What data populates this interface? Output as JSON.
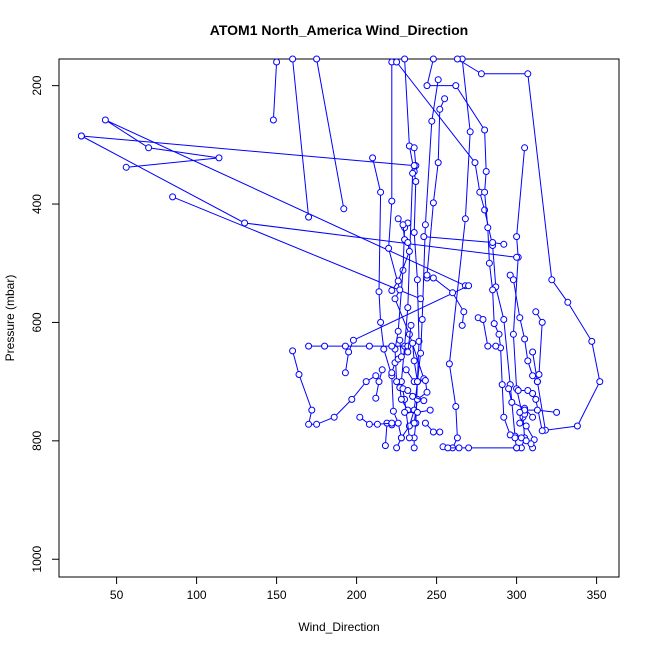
{
  "chart_data": {
    "type": "line",
    "title": "ATOM1 North_America Wind_Direction",
    "xlabel": "Wind_Direction",
    "ylabel": "Pressure (mbar)",
    "xlim": [
      14,
      364
    ],
    "ylim": [
      1030,
      155
    ],
    "y_reversed": true,
    "grid": false,
    "legend": "none",
    "x_ticks": [
      50,
      100,
      150,
      200,
      250,
      300,
      350
    ],
    "y_ticks": [
      200,
      400,
      600,
      800,
      1000
    ],
    "series_color": "#0000ff",
    "marker": "open-circle",
    "series": [
      {
        "points": [
          [
            266,
            155
          ],
          [
            271,
            278
          ],
          [
            268,
            425
          ],
          [
            258,
            670
          ],
          [
            262,
            742
          ],
          [
            263,
            795
          ],
          [
            260,
            812
          ]
        ]
      },
      {
        "points": [
          [
            230,
            155
          ],
          [
            233,
            302
          ],
          [
            236,
            345
          ],
          [
            237,
            362
          ],
          [
            236,
            448
          ],
          [
            238,
            528
          ],
          [
            239,
            632
          ],
          [
            238,
            700
          ],
          [
            236,
            748
          ],
          [
            233,
            775
          ],
          [
            228,
            795
          ],
          [
            225,
            812
          ]
        ]
      },
      {
        "points": [
          [
            251,
            190
          ],
          [
            247,
            260
          ],
          [
            243,
            435
          ],
          [
            241,
            595
          ],
          [
            240,
            652
          ],
          [
            238,
            700
          ],
          [
            237,
            770
          ],
          [
            236,
            795
          ],
          [
            236,
            812
          ]
        ]
      },
      {
        "points": [
          [
            305,
            305
          ],
          [
            300,
            455
          ],
          [
            301,
            490
          ],
          [
            298,
            620
          ],
          [
            300,
            712
          ],
          [
            304,
            760
          ],
          [
            305,
            795
          ],
          [
            303,
            812
          ]
        ]
      },
      {
        "points": [
          [
            236,
            305
          ],
          [
            237,
            335
          ],
          [
            235,
            348
          ],
          [
            232,
            575
          ],
          [
            230,
            640
          ],
          [
            228,
            700
          ],
          [
            230,
            730
          ],
          [
            233,
            795
          ]
        ]
      },
      {
        "points": [
          [
            210,
            322
          ],
          [
            215,
            380
          ],
          [
            214,
            548
          ],
          [
            215,
            600
          ],
          [
            217,
            645
          ],
          [
            222,
            690
          ],
          [
            223,
            750
          ],
          [
            226,
            770
          ],
          [
            228,
            795
          ]
        ]
      },
      {
        "points": [
          [
            232,
            432
          ],
          [
            230,
            440
          ],
          [
            229,
            512
          ],
          [
            226,
            615
          ],
          [
            224,
            645
          ],
          [
            225,
            700
          ],
          [
            227,
            710
          ],
          [
            228,
            730
          ],
          [
            232,
            748
          ]
        ]
      },
      {
        "points": [
          [
            28,
            285
          ],
          [
            236,
            335
          ]
        ]
      },
      {
        "points": [
          [
            28,
            285
          ],
          [
            130,
            432
          ],
          [
            300,
            490
          ]
        ]
      },
      {
        "points": [
          [
            56,
            338
          ],
          [
            114,
            322
          ],
          [
            70,
            305
          ],
          [
            43,
            258
          ],
          [
            268,
            538
          ]
        ]
      },
      {
        "points": [
          [
            85,
            388
          ],
          [
            240,
            560
          ]
        ]
      },
      {
        "points": [
          [
            148,
            258
          ],
          [
            150,
            160
          ]
        ]
      },
      {
        "points": [
          [
            170,
            422
          ],
          [
            160,
            155
          ]
        ]
      },
      {
        "points": [
          [
            192,
            408
          ],
          [
            175,
            155
          ]
        ]
      },
      {
        "points": [
          [
            222,
            160
          ],
          [
            222,
            395
          ],
          [
            220,
            475
          ],
          [
            227,
            545
          ],
          [
            224,
            560
          ],
          [
            233,
            620
          ],
          [
            242,
            695
          ]
        ]
      },
      {
        "points": [
          [
            225,
            160
          ],
          [
            274,
            330
          ],
          [
            277,
            380
          ],
          [
            280,
            410
          ],
          [
            285,
            470
          ],
          [
            287,
            540
          ],
          [
            292,
            595
          ],
          [
            296,
            705
          ],
          [
            299,
            792
          ]
        ]
      },
      {
        "points": [
          [
            248,
            155
          ],
          [
            244,
            200
          ],
          [
            262,
            200
          ],
          [
            280,
            275
          ],
          [
            281,
            345
          ],
          [
            280,
            380
          ],
          [
            282,
            440
          ],
          [
            283,
            500
          ],
          [
            285,
            545
          ],
          [
            286,
            602
          ],
          [
            289,
            620
          ],
          [
            290,
            643
          ],
          [
            291,
            705
          ],
          [
            292,
            760
          ],
          [
            296,
            790
          ],
          [
            299,
            795
          ],
          [
            300,
            812
          ]
        ]
      },
      {
        "points": [
          [
            263,
            155
          ],
          [
            278,
            180
          ],
          [
            307,
            180
          ],
          [
            322,
            528
          ],
          [
            332,
            566
          ],
          [
            347,
            632
          ],
          [
            352,
            700
          ],
          [
            338,
            775
          ],
          [
            318,
            782
          ],
          [
            313,
            700
          ],
          [
            310,
            650
          ]
        ]
      },
      {
        "points": [
          [
            160,
            648
          ],
          [
            164,
            688
          ],
          [
            172,
            748
          ],
          [
            170,
            772
          ],
          [
            175,
            772
          ],
          [
            186,
            760
          ],
          [
            197,
            730
          ],
          [
            206,
            700
          ],
          [
            212,
            690
          ]
        ]
      },
      {
        "points": [
          [
            170,
            640
          ],
          [
            180,
            640
          ],
          [
            193,
            640
          ],
          [
            208,
            640
          ],
          [
            222,
            640
          ],
          [
            232,
            640
          ]
        ]
      },
      {
        "points": [
          [
            193,
            685
          ],
          [
            195,
            650
          ],
          [
            198,
            630
          ],
          [
            270,
            538
          ]
        ]
      },
      {
        "points": [
          [
            242,
            455
          ],
          [
            285,
            465
          ],
          [
            292,
            468
          ]
        ]
      },
      {
        "points": [
          [
            212,
            728
          ],
          [
            214,
            700
          ],
          [
            216,
            680
          ]
        ]
      },
      {
        "points": [
          [
            218,
            808
          ],
          [
            219,
            770
          ],
          [
            222,
            773
          ]
        ]
      },
      {
        "points": [
          [
            244,
            525
          ],
          [
            248,
            525
          ],
          [
            260,
            550
          ],
          [
            267,
            582
          ],
          [
            266,
            605
          ]
        ]
      },
      {
        "points": [
          [
            255,
            222
          ],
          [
            252,
            240
          ],
          [
            251,
            330
          ],
          [
            248,
            398
          ],
          [
            244,
            520
          ]
        ]
      },
      {
        "points": [
          [
            276,
            592
          ],
          [
            279,
            595
          ],
          [
            282,
            640
          ],
          [
            287,
            640
          ]
        ]
      },
      {
        "points": [
          [
            226,
            425
          ],
          [
            229,
            435
          ],
          [
            230,
            460
          ],
          [
            232,
            465
          ],
          [
            233,
            480
          ],
          [
            226,
            530
          ],
          [
            222,
            546
          ]
        ]
      },
      {
        "points": [
          [
            231,
            680
          ],
          [
            236,
            700
          ],
          [
            243,
            698
          ],
          [
            244,
            718
          ],
          [
            238,
            730
          ],
          [
            236,
            770
          ]
        ]
      },
      {
        "points": [
          [
            296,
            520
          ],
          [
            298,
            528
          ],
          [
            302,
            592
          ],
          [
            305,
            628
          ],
          [
            307,
            665
          ],
          [
            310,
            690
          ],
          [
            313,
            700
          ]
        ]
      },
      {
        "points": [
          [
            305,
            755
          ],
          [
            302,
            770
          ],
          [
            306,
            775
          ],
          [
            311,
            798
          ],
          [
            310,
            812
          ]
        ]
      },
      {
        "points": [
          [
            295,
            712
          ],
          [
            297,
            735
          ],
          [
            305,
            745
          ],
          [
            310,
            760
          ]
        ]
      },
      {
        "points": [
          [
            301,
            715
          ],
          [
            307,
            715
          ],
          [
            310,
            720
          ],
          [
            312,
            730
          ],
          [
            316,
            783
          ]
        ]
      },
      {
        "points": [
          [
            254,
            810
          ],
          [
            257,
            812
          ],
          [
            264,
            812
          ],
          [
            270,
            812
          ],
          [
            300,
            812
          ]
        ]
      },
      {
        "points": [
          [
            235,
            635
          ],
          [
            236,
            665
          ],
          [
            238,
            700
          ]
        ]
      },
      {
        "points": [
          [
            314,
            688
          ],
          [
            316,
            600
          ],
          [
            312,
            582
          ]
        ]
      },
      {
        "points": [
          [
            230,
            752
          ],
          [
            238,
            752
          ],
          [
            246,
            748
          ]
        ]
      },
      {
        "points": [
          [
            325,
            752
          ],
          [
            313,
            748
          ],
          [
            305,
            748
          ],
          [
            302,
            752
          ]
        ]
      },
      {
        "points": [
          [
            202,
            760
          ],
          [
            208,
            772
          ],
          [
            213,
            772
          ],
          [
            222,
            770
          ]
        ]
      },
      {
        "points": [
          [
            229,
            712
          ],
          [
            232,
            715
          ],
          [
            235,
            725
          ],
          [
            242,
            732
          ]
        ]
      },
      {
        "points": [
          [
            243,
            770
          ],
          [
            248,
            785
          ],
          [
            252,
            785
          ]
        ]
      },
      {
        "points": [
          [
            309,
            805
          ],
          [
            303,
            795
          ],
          [
            306,
            800
          ]
        ]
      },
      {
        "points": [
          [
            222,
            685
          ],
          [
            224,
            668
          ],
          [
            226,
            662
          ]
        ]
      },
      {
        "points": [
          [
            227,
            630
          ],
          [
            228,
            658
          ],
          [
            232,
            650
          ],
          [
            234,
            605
          ]
        ]
      }
    ]
  }
}
